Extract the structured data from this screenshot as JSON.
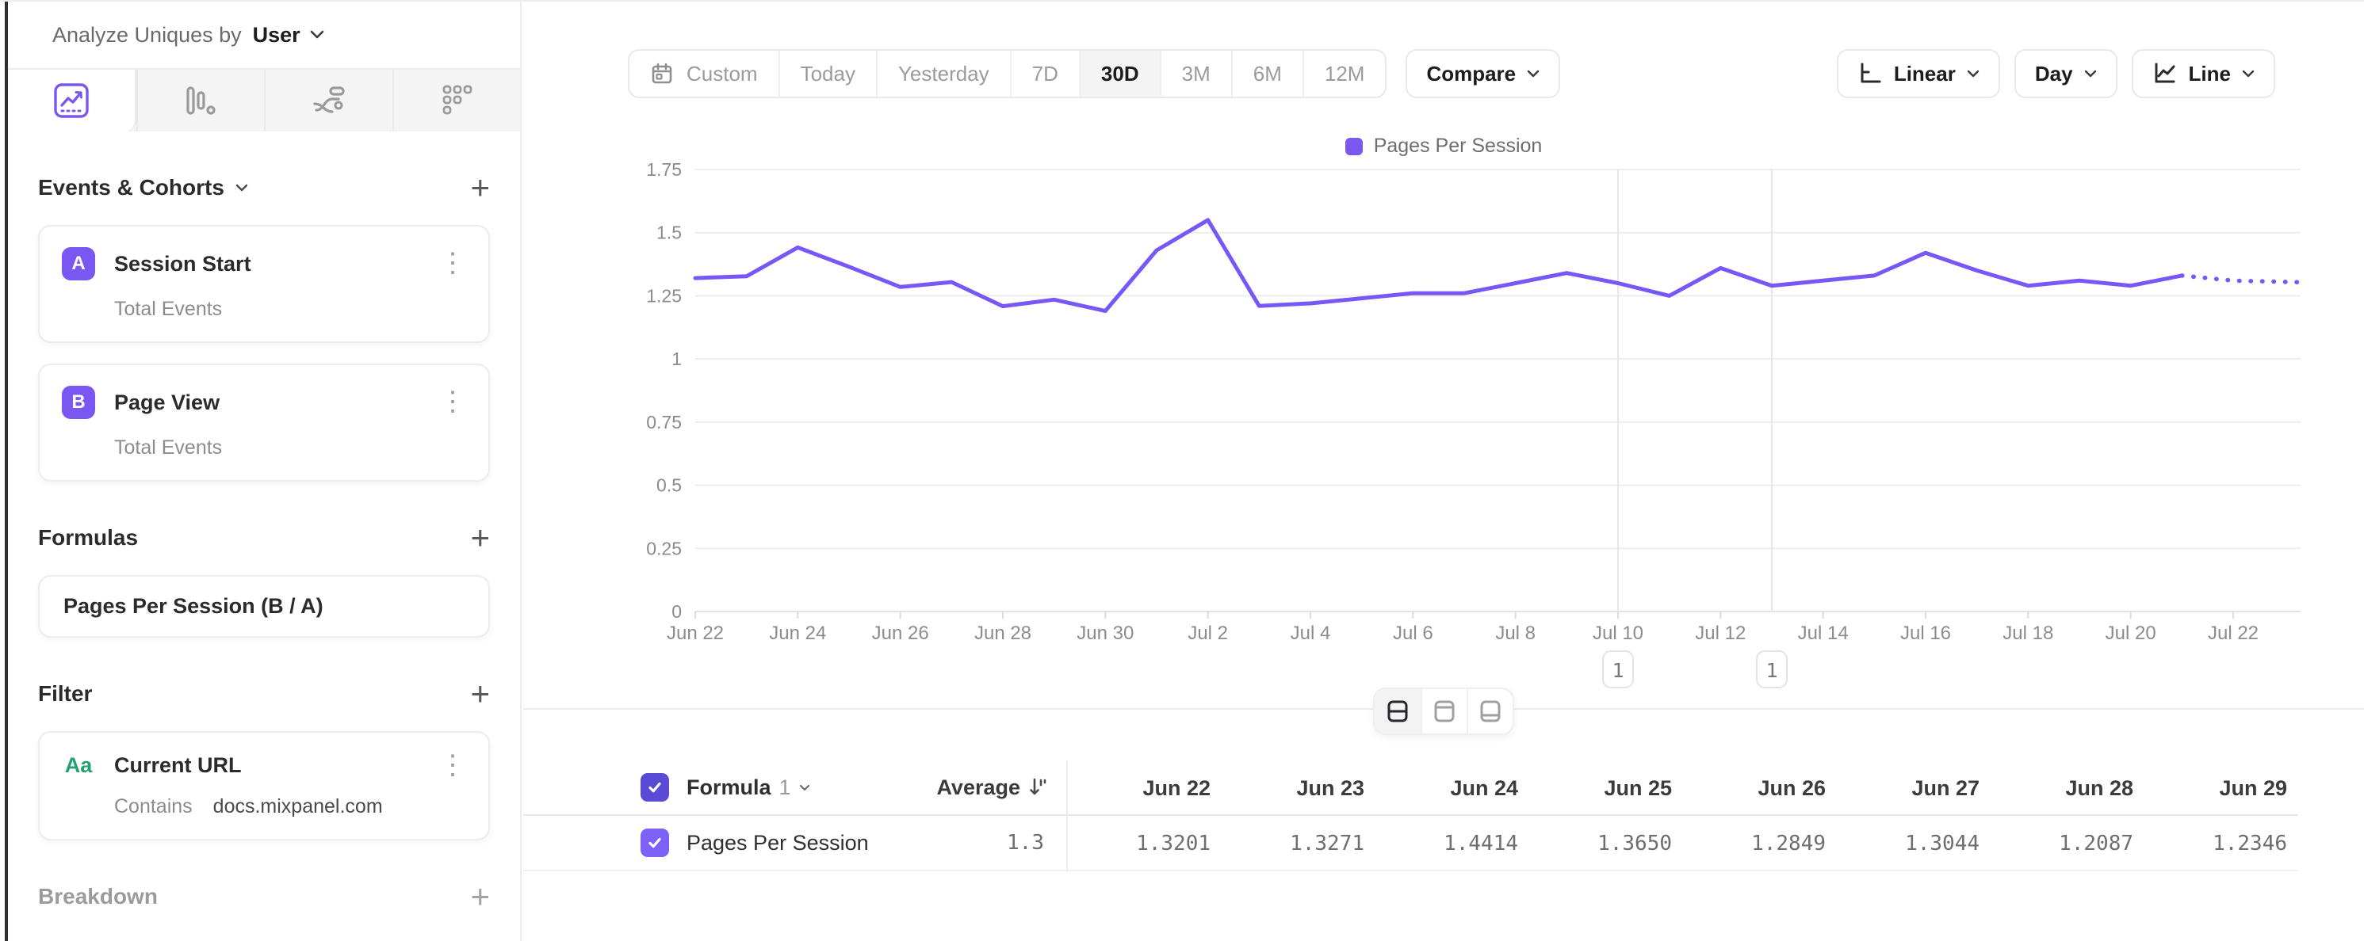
{
  "colors": {
    "accent_purple": "#7a57f0",
    "line_purple": "#7857f7",
    "checkbox_header": "#5b4ad6",
    "checkbox_row": "#7e62f8",
    "filter_type_green": "#23a16f"
  },
  "icons": {
    "plus": "+",
    "kebab": "⋮"
  },
  "sidebar": {
    "analyze_label": "Analyze Uniques by",
    "analyze_value": "User",
    "tabs": [
      "insights-line",
      "bar-chart",
      "flows",
      "retention-grid"
    ],
    "events_header": "Events & Cohorts",
    "events": [
      {
        "letter": "A",
        "title": "Session Start",
        "subtitle": "Total Events"
      },
      {
        "letter": "B",
        "title": "Page View",
        "subtitle": "Total Events"
      }
    ],
    "formulas_header": "Formulas",
    "formula_card_title": "Pages Per Session (B / A)",
    "filter_header": "Filter",
    "filter_card": {
      "type_badge": "Aa",
      "title": "Current URL",
      "operator": "Contains",
      "value": "docs.mixpanel.com"
    },
    "breakdown_header": "Breakdown"
  },
  "toolbar": {
    "ranges": [
      "Custom",
      "Today",
      "Yesterday",
      "7D",
      "30D",
      "3M",
      "6M",
      "12M"
    ],
    "active_range": "30D",
    "compare_label": "Compare",
    "scale_label": "Linear",
    "interval_label": "Day",
    "chart_type_label": "Line"
  },
  "chart_data": {
    "type": "line",
    "title": "",
    "legend": [
      "Pages Per Session"
    ],
    "legend_position": "top-center",
    "x": [
      "Jun 22",
      "Jun 23",
      "Jun 24",
      "Jun 25",
      "Jun 26",
      "Jun 27",
      "Jun 28",
      "Jun 29",
      "Jun 30",
      "Jul 1",
      "Jul 2",
      "Jul 3",
      "Jul 4",
      "Jul 5",
      "Jul 6",
      "Jul 7",
      "Jul 8",
      "Jul 9",
      "Jul 10",
      "Jul 11",
      "Jul 12",
      "Jul 13",
      "Jul 14",
      "Jul 15",
      "Jul 16",
      "Jul 17",
      "Jul 18",
      "Jul 19",
      "Jul 20",
      "Jul 21",
      "Jul 22"
    ],
    "x_label_every": 2,
    "series": [
      {
        "name": "Pages Per Session",
        "color": "#7857f7",
        "values": [
          1.3201,
          1.3271,
          1.4414,
          1.365,
          1.2849,
          1.3044,
          1.2087,
          1.2346,
          1.19,
          1.43,
          1.55,
          1.21,
          1.22,
          1.24,
          1.26,
          1.26,
          1.3,
          1.34,
          1.3,
          1.25,
          1.36,
          1.29,
          1.31,
          1.33,
          1.42,
          1.35,
          1.29,
          1.31,
          1.29,
          1.33,
          1.31
        ]
      }
    ],
    "dotted_from_index": 29,
    "ylim": [
      0,
      1.75
    ],
    "yticks": [
      0,
      0.25,
      0.5,
      0.75,
      1,
      1.25,
      1.5,
      1.75
    ],
    "grid": "horizontal",
    "annotations": [
      {
        "x_label": "Jul 10",
        "label": "1"
      },
      {
        "x_label": "Jul 13",
        "label": "1"
      }
    ]
  },
  "table": {
    "header_formula_label": "Formula",
    "header_formula_number": "1",
    "average_label": "Average",
    "row": {
      "name": "Pages Per Session",
      "average": "1.3"
    },
    "columns": [
      {
        "date": "Jun 22",
        "value": "1.3201"
      },
      {
        "date": "Jun 23",
        "value": "1.3271"
      },
      {
        "date": "Jun 24",
        "value": "1.4414"
      },
      {
        "date": "Jun 25",
        "value": "1.3650"
      },
      {
        "date": "Jun 26",
        "value": "1.2849"
      },
      {
        "date": "Jun 27",
        "value": "1.3044"
      },
      {
        "date": "Jun 28",
        "value": "1.2087"
      },
      {
        "date": "Jun 29",
        "value": "1.2346"
      }
    ]
  }
}
